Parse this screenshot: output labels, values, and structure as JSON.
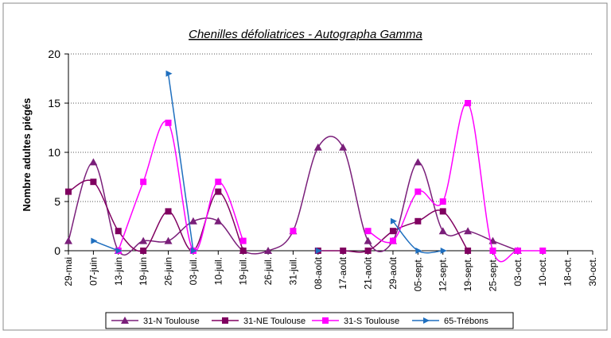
{
  "chart_data": {
    "type": "line",
    "title": "Chenilles défoliatrices - Autographa Gamma",
    "y_label": "Nombre adultes piégés",
    "categories": [
      "29-mai",
      "07-juin",
      "13-juin",
      "19-juin",
      "26-juin",
      "03-juil.",
      "10-juil.",
      "19-juil.",
      "26-juil.",
      "31-juil.",
      "08-août",
      "17-août",
      "21-août",
      "29-août",
      "05-sept.",
      "12-sept.",
      "19-sept.",
      "25-sept.",
      "03-oct.",
      "10-oct.",
      "18-oct.",
      "30-oct."
    ],
    "series": [
      {
        "name": "31-N Toulouse",
        "color": "#7a1f7a",
        "marker": "triangle",
        "values": [
          1,
          9,
          0,
          1,
          1,
          3,
          3,
          0,
          0,
          2,
          10.5,
          10.5,
          1,
          1,
          9,
          2,
          2,
          1,
          0,
          null,
          null,
          null
        ]
      },
      {
        "name": "31-NE Toulouse",
        "color": "#800060",
        "marker": "square",
        "values": [
          6,
          7,
          2,
          0,
          4,
          0,
          6,
          0,
          null,
          null,
          0,
          0,
          0,
          2,
          3,
          4,
          0,
          null,
          0,
          null,
          null,
          null
        ]
      },
      {
        "name": "31-S Toulouse",
        "color": "#ff00ff",
        "marker": "square",
        "values": [
          null,
          null,
          0,
          7,
          13,
          0,
          7,
          1,
          null,
          2,
          null,
          null,
          2,
          1,
          6,
          5,
          15,
          0,
          0,
          0,
          null,
          null
        ]
      },
      {
        "name": "65-Trébons",
        "color": "#1f6fbf",
        "marker": "arrow",
        "values": [
          null,
          1,
          0,
          null,
          18,
          0,
          null,
          null,
          null,
          null,
          0,
          null,
          null,
          3,
          0,
          0,
          null,
          null,
          null,
          null,
          null,
          null
        ]
      }
    ],
    "ylim": [
      0,
      20
    ],
    "yticks": [
      0,
      5,
      10,
      15,
      20
    ],
    "grid": true,
    "smooth": true,
    "legend": "bottom"
  }
}
